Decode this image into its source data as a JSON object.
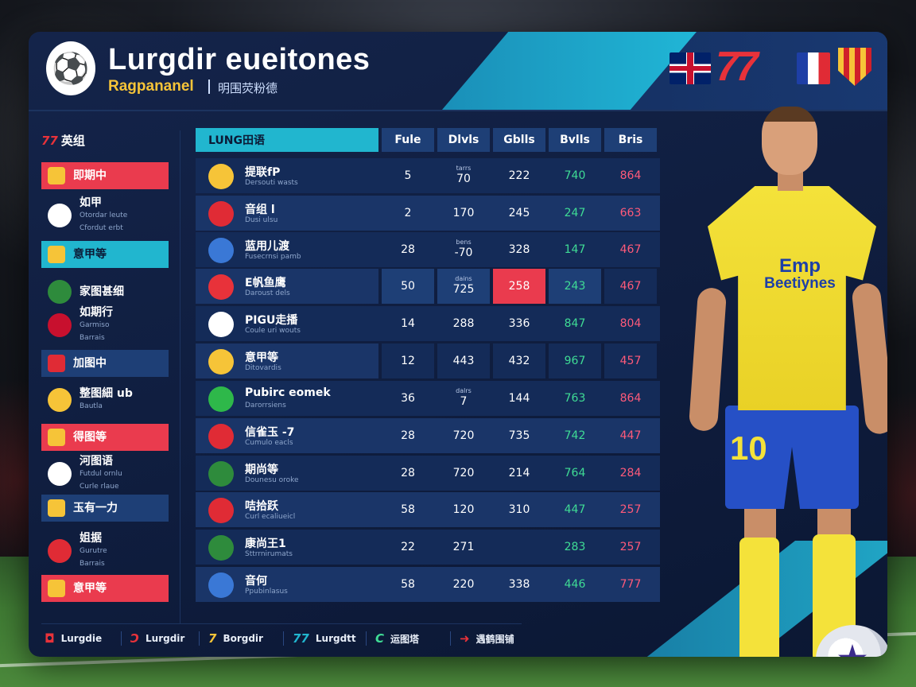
{
  "header": {
    "title": "Lurgdir eueitones",
    "subtitle": "Ragpananel",
    "subtitle_cn": "明围荧粉德",
    "brand_mark": "77"
  },
  "sidebar": {
    "heading_mark": "77",
    "heading": "英组",
    "items": [
      {
        "label": "即期中",
        "sub": "",
        "style": "red",
        "icon_color": "#f6c438"
      },
      {
        "label": "如甲",
        "sub": "Otordar leute\nCfordut erbt",
        "style": "plain",
        "icon_color": "#ffffff"
      },
      {
        "label": "意甲等",
        "sub": "",
        "style": "cyan",
        "icon_color": "#f6c438"
      },
      {
        "label": "家图甚细",
        "sub": "",
        "style": "plain",
        "icon_color": "#2e8b3c"
      },
      {
        "label": "如期行",
        "sub": "Garmiso\nBarrais",
        "style": "plain",
        "icon_color": "#c8102e"
      },
      {
        "label": "加图中",
        "sub": "",
        "style": "navy",
        "icon_color": "#e02b35"
      },
      {
        "label": "整图細 ub",
        "sub": "Bautla",
        "style": "plain",
        "icon_color": "#f6c438"
      },
      {
        "label": "得图等",
        "sub": "",
        "style": "red",
        "icon_color": "#f6c438"
      },
      {
        "label": "河图语",
        "sub": "Futdul ornlu\nCurle rlaue",
        "style": "plain",
        "icon_color": "#ffffff"
      },
      {
        "label": "玉有一力",
        "sub": "",
        "style": "navy",
        "icon_color": "#f6c438"
      },
      {
        "label": "姐据",
        "sub": "Gurutre\nBarrais",
        "style": "plain",
        "icon_color": "#e02b35"
      },
      {
        "label": "意甲等",
        "sub": "",
        "style": "red",
        "icon_color": "#f6c438"
      }
    ]
  },
  "table": {
    "name_header": "LUNG田语",
    "columns": [
      "Fule",
      "Dlvls",
      "Gblls",
      "Bvlls",
      "Bris"
    ],
    "rows": [
      {
        "name": "提联fP",
        "sub": "Dersouti wasts",
        "icon": "#f6c438",
        "v": [
          "5",
          "70",
          "222",
          "740",
          "864"
        ],
        "tiny": [
          "",
          "tarrs",
          "",
          "",
          ""
        ]
      },
      {
        "name": "音组 l",
        "sub": "Dusi ulsu",
        "icon": "#e02b35",
        "v": [
          "2",
          "170",
          "245",
          "247",
          "663"
        ],
        "tiny": [
          "",
          "",
          "",
          "",
          ""
        ]
      },
      {
        "name": "蓝用儿渡",
        "sub": "Fusecrnsi pamb",
        "icon": "#3a78d6",
        "v": [
          "28",
          "-70",
          "328",
          "147",
          "467"
        ],
        "tiny": [
          "",
          "bens",
          "",
          "",
          ""
        ]
      },
      {
        "name": "E帆鱼鹰",
        "sub": "Daroust dels",
        "icon": "#e8323a",
        "v": [
          "50",
          "725",
          "258",
          "243",
          "467"
        ],
        "tiny": [
          "",
          "dains",
          "",
          "",
          ""
        ]
      },
      {
        "name": "PIGU走播",
        "sub": "Coule uri wouts",
        "icon": "#ffffff",
        "v": [
          "14",
          "288",
          "336",
          "847",
          "804"
        ],
        "tiny": [
          "",
          "",
          "",
          "",
          ""
        ]
      },
      {
        "name": "意甲等",
        "sub": "Ditovardis",
        "icon": "#f6c438",
        "v": [
          "12",
          "443",
          "432",
          "967",
          "457"
        ],
        "tiny": [
          "",
          "",
          "",
          "",
          ""
        ]
      },
      {
        "name": "Pubirc eomek",
        "sub": "Darorrsiens",
        "icon": "#2eb84a",
        "v": [
          "36",
          "7",
          "144",
          "763",
          "864"
        ],
        "tiny": [
          "",
          "dalrs",
          "",
          "",
          ""
        ]
      },
      {
        "name": "信雀玉 -7",
        "sub": "Cumulo eacls",
        "icon": "#e02b35",
        "v": [
          "28",
          "720",
          "735",
          "742",
          "447"
        ],
        "tiny": [
          "",
          "",
          "",
          "",
          ""
        ]
      },
      {
        "name": "期尚等",
        "sub": "Dounesu oroke",
        "icon": "#2e8b3c",
        "v": [
          "28",
          "720",
          "214",
          "764",
          "284"
        ],
        "tiny": [
          "",
          "",
          "",
          "",
          ""
        ]
      },
      {
        "name": "咭拾跃",
        "sub": "Curl ecaliueicl",
        "icon": "#e02b35",
        "v": [
          "58",
          "120",
          "310",
          "447",
          "257"
        ],
        "tiny": [
          "",
          "",
          "",
          "",
          ""
        ]
      },
      {
        "name": "康尚王1",
        "sub": "Sttrrnirumats",
        "icon": "#2e8b3c",
        "v": [
          "22",
          "271",
          "",
          "283",
          "257"
        ],
        "tiny": [
          "",
          "",
          "",
          "",
          ""
        ]
      },
      {
        "name": "音何",
        "sub": "Ppubinlasus",
        "icon": "#3a78d6",
        "v": [
          "58",
          "220",
          "338",
          "446",
          "777"
        ],
        "tiny": [
          "",
          "",
          "",
          "",
          ""
        ]
      }
    ]
  },
  "footer": {
    "items": [
      {
        "mark": "◘",
        "label": "Lurgdie",
        "color": "#e8323a"
      },
      {
        "mark": "Ↄ",
        "label": "Lurgdir",
        "color": "#e8323a"
      },
      {
        "mark": "7",
        "label": "Borgdir",
        "color": "#f6c438"
      },
      {
        "mark": "77",
        "label": "Lurgdtt",
        "color": "#21b6cf"
      },
      {
        "mark": "C",
        "label": "运图塔",
        "color": "#3fdc95"
      },
      {
        "mark": "➜",
        "label": "遇鹤围铺",
        "color": "#e8323a"
      }
    ]
  },
  "player": {
    "jersey_line1": "Emp",
    "jersey_line2": "Beetiynes",
    "number": "10"
  }
}
